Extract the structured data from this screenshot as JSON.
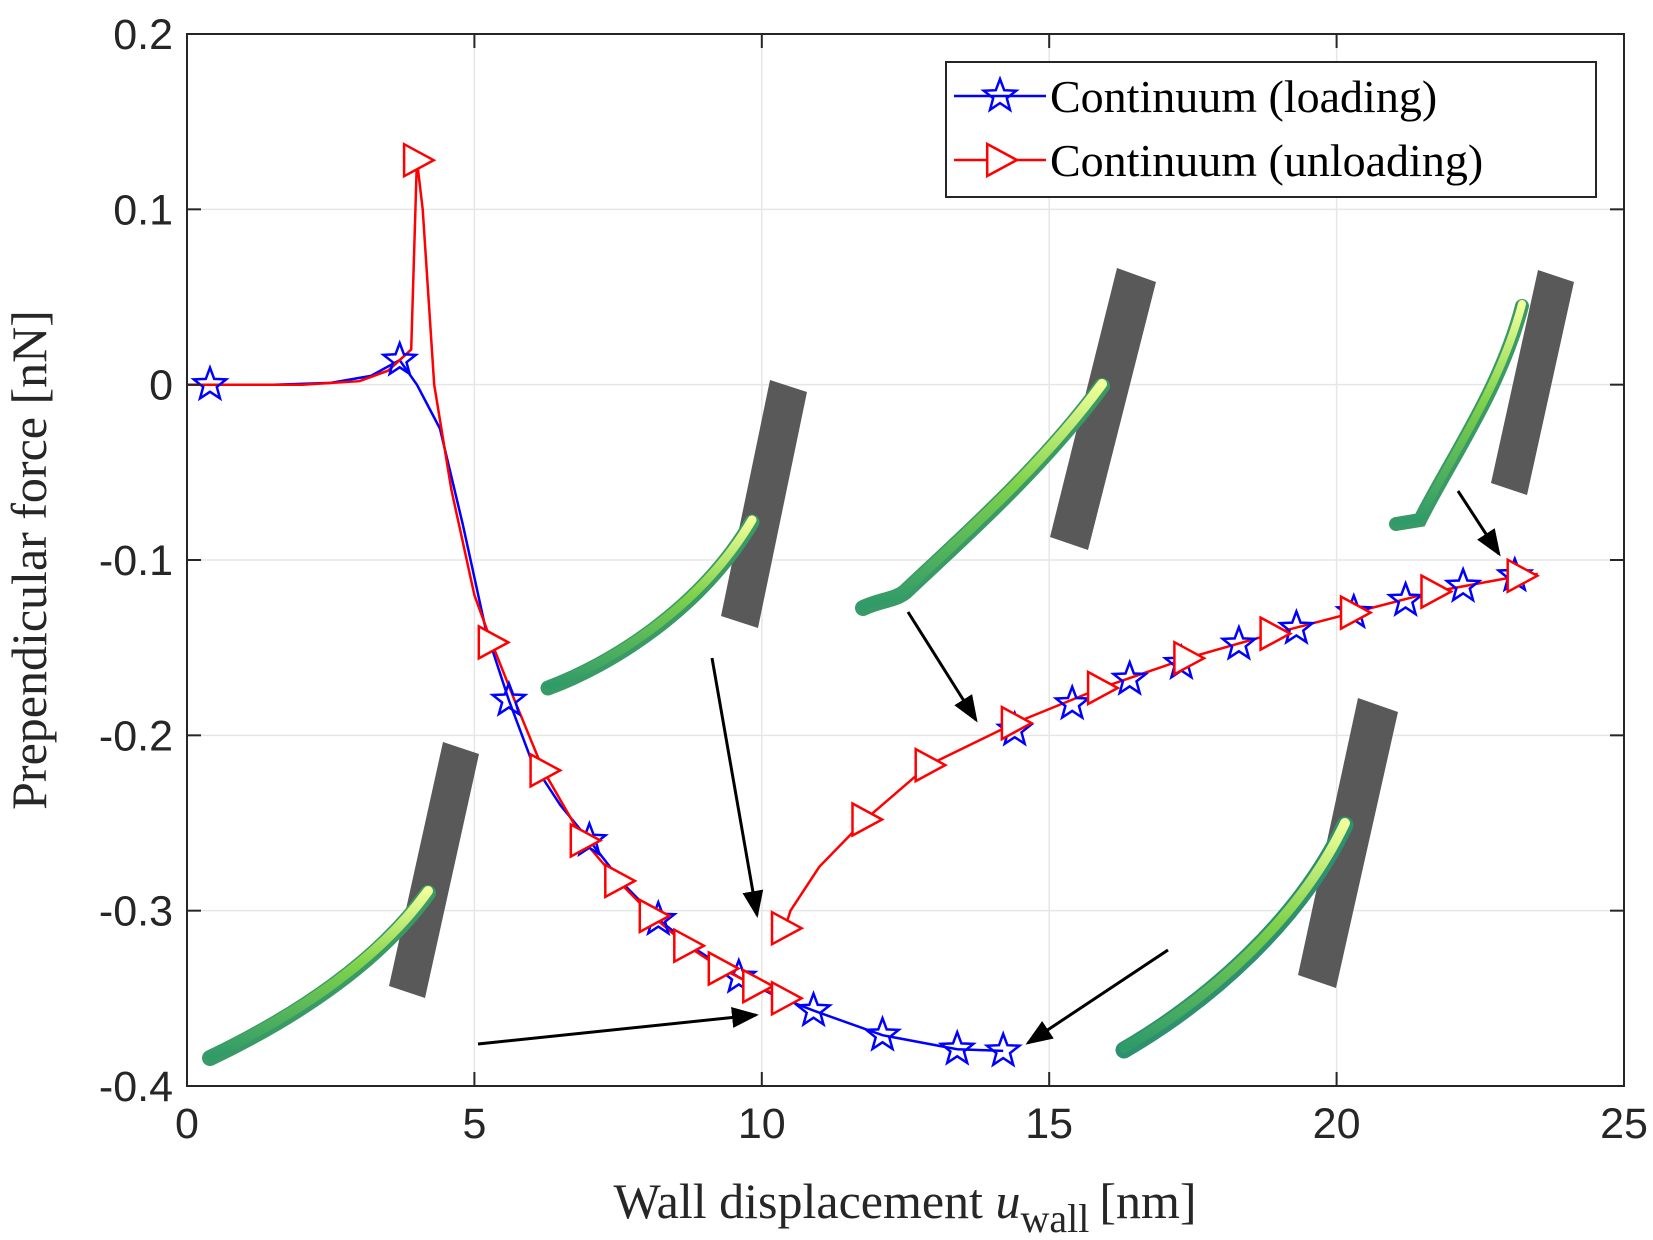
{
  "chart_data": {
    "type": "line",
    "title": "",
    "xlabel": "Wall displacement",
    "xlabel_var": "u",
    "xlabel_sub": "wall",
    "xlabel_unit": "[nm]",
    "ylabel": "Prependicular force [nN]",
    "xlim": [
      0,
      25
    ],
    "ylim": [
      -0.4,
      0.2
    ],
    "xticks": [
      0,
      5,
      10,
      15,
      20,
      25
    ],
    "xtick_labels": [
      "0",
      "5",
      "10",
      "15",
      "20",
      "25"
    ],
    "yticks": [
      0.2,
      0.1,
      0,
      -0.1,
      -0.2,
      -0.3,
      -0.4
    ],
    "ytick_labels": [
      "0.2",
      "0.1",
      "0",
      "-0.1",
      "-0.2",
      "-0.3",
      "-0.4"
    ],
    "grid": true,
    "legend_position": "top-right",
    "series": [
      {
        "name": "Continuum (loading)",
        "color": "#0000FF",
        "marker": "star",
        "x": [
          0,
          0.4,
          1.5,
          2.5,
          3.2,
          3.7,
          4.0,
          4.4,
          4.8,
          5.2,
          5.6,
          6.0,
          6.5,
          7.0,
          7.6,
          8.2,
          8.9,
          9.6,
          10.2,
          10.9,
          12.1,
          13.4,
          14.2
        ],
        "y": [
          0,
          0,
          0,
          0.001,
          0.005,
          0.014,
          0.0,
          -0.025,
          -0.08,
          -0.14,
          -0.18,
          -0.215,
          -0.24,
          -0.26,
          -0.285,
          -0.305,
          -0.323,
          -0.338,
          -0.348,
          -0.357,
          -0.371,
          -0.379,
          -0.38
        ],
        "markers_x": [
          0.4,
          3.7,
          5.6,
          7.0,
          8.2,
          9.6,
          10.9,
          12.1,
          13.4,
          14.2
        ],
        "markers_y": [
          0,
          0.014,
          -0.18,
          -0.26,
          -0.305,
          -0.338,
          -0.357,
          -0.371,
          -0.379,
          -0.38
        ]
      },
      {
        "name": "Continuum (unloading)",
        "color": "#FF0000",
        "marker": "triangle-right",
        "x": [
          0,
          1.0,
          2.0,
          3.0,
          3.5,
          3.9,
          4.0,
          4.1,
          4.3,
          4.6,
          5.0,
          5.3,
          5.7,
          6.2,
          6.9,
          7.5,
          8.1,
          8.7,
          9.3,
          9.9,
          10.4
        ],
        "y": [
          0,
          0,
          0,
          0.002,
          0.008,
          0.02,
          0.128,
          0.1,
          0.0,
          -0.06,
          -0.12,
          -0.147,
          -0.18,
          -0.22,
          -0.26,
          -0.283,
          -0.303,
          -0.32,
          -0.333,
          -0.343,
          -0.35
        ],
        "return_x": [
          10.4,
          10.5,
          11.0,
          11.8,
          12.9,
          14.4,
          15.9,
          17.4,
          18.9,
          20.3,
          21.7,
          23.2,
          23.5
        ],
        "return_y": [
          -0.31,
          -0.3,
          -0.275,
          -0.248,
          -0.217,
          -0.193,
          -0.173,
          -0.156,
          -0.142,
          -0.13,
          -0.118,
          -0.109,
          -0.108
        ],
        "markers_x": [
          4.0,
          5.3,
          6.2,
          6.9,
          7.5,
          8.1,
          8.7,
          9.3,
          9.9,
          10.4,
          10.4,
          11.8,
          12.9,
          14.4,
          15.9,
          17.4,
          18.9,
          20.3,
          21.7,
          23.2
        ],
        "markers_y": [
          0.128,
          -0.147,
          -0.22,
          -0.26,
          -0.283,
          -0.303,
          -0.32,
          -0.333,
          -0.343,
          -0.35,
          -0.31,
          -0.248,
          -0.217,
          -0.193,
          -0.173,
          -0.156,
          -0.142,
          -0.13,
          -0.118,
          -0.109
        ]
      }
    ],
    "extra_loading_markers": {
      "x": [
        14.4,
        15.4,
        16.4,
        17.3,
        18.3,
        19.3,
        20.3,
        21.2,
        22.2,
        23.1
      ],
      "y": [
        -0.197,
        -0.182,
        -0.168,
        -0.159,
        -0.148,
        -0.139,
        -0.13,
        -0.123,
        -0.115,
        -0.109
      ]
    }
  },
  "insets": [
    {
      "name": "inset-1",
      "points_to": [
        10.0,
        -0.3
      ]
    },
    {
      "name": "inset-2",
      "points_to": [
        14.0,
        -0.195
      ]
    },
    {
      "name": "inset-3",
      "points_to": [
        23.0,
        -0.098
      ]
    },
    {
      "name": "inset-4",
      "points_to": [
        10.0,
        -0.36
      ]
    },
    {
      "name": "inset-5",
      "points_to": [
        14.5,
        -0.373
      ]
    }
  ],
  "colors": {
    "loading": "#0000FF",
    "unloading": "#FF0000",
    "wall": "#595959",
    "fiber_light": "#d4f080",
    "fiber_dark": "#2fa070",
    "grid": "#e6e6e6",
    "axis": "#262626"
  }
}
